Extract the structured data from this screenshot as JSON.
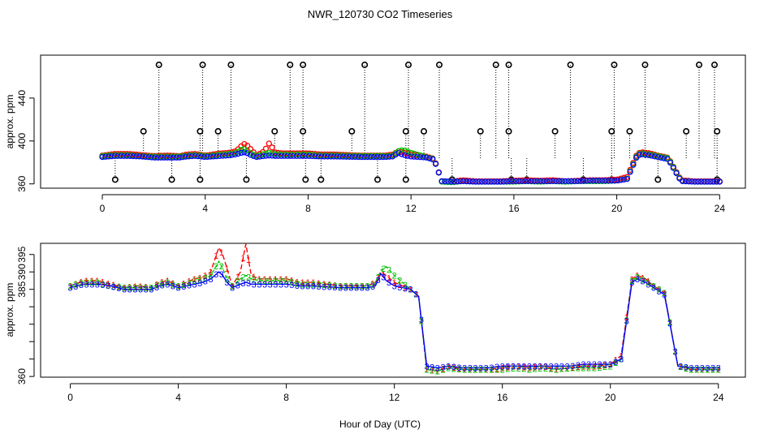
{
  "title": "NWR_120730  CO2 Timeseries",
  "xlabel": "Hour of Day (UTC)",
  "colors": {
    "one": "#ff0000",
    "two": "#00c000",
    "three": "#0000ff",
    "flag": "#000000",
    "cyan": "#00cccc"
  },
  "chart_data": [
    {
      "type": "scatter",
      "name": "top-panel",
      "ylabel": "approx. ppm",
      "xlim": [
        -2.4,
        25
      ],
      "ylim": [
        356,
        480
      ],
      "x_ticks": [
        0,
        4,
        8,
        12,
        16,
        20,
        24
      ],
      "x_tick_labels": [
        "0",
        "4",
        "8",
        "12",
        "16",
        "20",
        "24"
      ],
      "y_ticks": [
        360,
        400,
        440
      ],
      "y_tick_labels": [
        "360",
        "400",
        "440"
      ],
      "flag_high_value": 471,
      "flag_mid_value": 409,
      "flag_low_value": 364,
      "flag_high_x": [
        2.2,
        3.9,
        5.0,
        7.3,
        7.8,
        10.2,
        11.9,
        13.1,
        15.3,
        15.8,
        18.2,
        19.9,
        21.1,
        23.2,
        23.8
      ],
      "flag_mid_x": [
        1.6,
        3.8,
        4.5,
        6.7,
        7.8,
        9.7,
        11.8,
        12.5,
        14.7,
        15.8,
        17.6,
        19.8,
        20.5,
        22.7,
        23.9
      ],
      "flag_low_x": [
        0.5,
        2.7,
        3.8,
        5.6,
        7.9,
        8.5,
        10.7,
        11.8,
        13.6,
        15.9,
        16.5,
        18.7,
        19.8,
        21.6,
        23.9
      ],
      "background_x": [
        0,
        24
      ],
      "background_value": 384
    },
    {
      "type": "line",
      "name": "bottom-panel",
      "ylabel": "approx. ppm",
      "xlim": [
        -1.1,
        25
      ],
      "ylim": [
        359.8,
        398.2
      ],
      "x_ticks": [
        0,
        4,
        8,
        12,
        16,
        20,
        24
      ],
      "x_tick_labels": [
        "0",
        "4",
        "8",
        "12",
        "16",
        "20",
        "24"
      ],
      "y_ticks": [
        360,
        365,
        370,
        375,
        380,
        385,
        390,
        395
      ],
      "y_tick_labels": [
        "360",
        "",
        "",
        "",
        "",
        "385",
        "390",
        "395"
      ],
      "x": [
        0,
        0.5,
        1,
        1.5,
        2,
        2.5,
        3,
        3.3,
        3.6,
        4,
        4.3,
        4.6,
        4.9,
        5.2,
        5.5,
        5.65,
        5.8,
        6,
        6.3,
        6.5,
        6.7,
        7,
        7.5,
        8,
        8.5,
        9,
        10,
        10.5,
        11,
        11.3,
        11.5,
        11.7,
        12,
        12.3,
        12.6,
        12.9,
        13.2,
        13.6,
        14,
        14.5,
        15,
        15.5,
        16,
        16.5,
        17,
        17.5,
        18,
        18.5,
        19,
        19.5,
        20,
        20.4,
        20.8,
        21,
        21.3,
        21.6,
        22,
        22.5,
        23,
        23.5,
        23.8
      ],
      "series": [
        {
          "name": "1",
          "values": [
            386,
            387.5,
            387.5,
            386.5,
            385.5,
            386,
            385.5,
            387,
            387.5,
            386,
            387,
            388,
            388.5,
            390,
            397,
            395,
            391,
            386,
            390,
            398,
            389,
            388,
            388,
            388,
            387,
            387,
            386,
            386,
            386,
            387,
            390,
            389,
            387,
            386,
            385,
            383,
            362,
            361.5,
            363,
            362,
            362,
            362,
            362.5,
            363,
            362.5,
            363,
            362,
            362.5,
            363,
            363,
            363.5,
            366,
            388,
            389,
            388,
            386,
            384,
            363,
            362,
            362,
            362
          ]
        },
        {
          "name": "2",
          "values": [
            386,
            387,
            387,
            386,
            385.5,
            385.5,
            385.5,
            386.5,
            387,
            386,
            386.5,
            387.5,
            388,
            389,
            393,
            391,
            388,
            386,
            388,
            389,
            388,
            387.5,
            387.5,
            387.5,
            386.5,
            386.5,
            386,
            386,
            386,
            386.5,
            390.5,
            391.5,
            389,
            387,
            385,
            383,
            362,
            361.5,
            362.5,
            362,
            362,
            362,
            362,
            362.5,
            362,
            362.5,
            362,
            362.5,
            362.5,
            362.5,
            363,
            365,
            387.5,
            388.5,
            387.5,
            386,
            384,
            363,
            362,
            362,
            362
          ]
        },
        {
          "name": "3",
          "values": [
            385.5,
            386.5,
            386.5,
            386,
            385,
            385,
            385,
            386,
            386.5,
            385.5,
            386,
            386.5,
            387,
            388,
            390,
            389,
            387,
            385.5,
            386.5,
            387,
            386.5,
            386.5,
            386.5,
            386.5,
            386,
            386,
            385.5,
            385.5,
            385.5,
            386,
            389.5,
            387.5,
            386,
            385.5,
            385,
            383,
            363,
            362.5,
            363,
            362.5,
            362.5,
            362.5,
            363,
            363,
            363,
            363,
            363,
            363,
            363.5,
            363.5,
            363.5,
            365,
            387,
            388,
            387,
            385.5,
            383.5,
            363,
            362.5,
            362.5,
            362.5
          ]
        }
      ]
    }
  ]
}
